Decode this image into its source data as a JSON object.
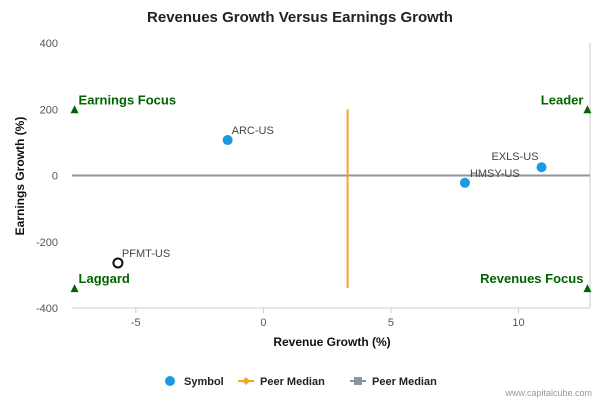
{
  "chart_data": {
    "type": "scatter",
    "title": "Revenues Growth Versus Earnings Growth",
    "xlabel": "Revenue Growth (%)",
    "ylabel": "Earnings Growth (%)",
    "xlim": [
      -7.5,
      12.8
    ],
    "ylim": [
      -400,
      400
    ],
    "xticks": [
      -5,
      0,
      5,
      10
    ],
    "yticks": [
      400,
      200,
      0,
      -200,
      -400
    ],
    "points": [
      {
        "label": "ARC-US",
        "x": -1.4,
        "y": 107,
        "style": "filled"
      },
      {
        "label": "EXLS-US",
        "x": 10.9,
        "y": 25,
        "style": "filled"
      },
      {
        "label": "HMSY-US",
        "x": 7.9,
        "y": -22,
        "style": "filled"
      },
      {
        "label": "PFMT-US",
        "x": -5.7,
        "y": -264,
        "style": "hollow"
      }
    ],
    "peer_median_x": 3.3,
    "peer_median_x_range": [
      -340,
      200
    ],
    "peer_median_y": 0,
    "quadrants": [
      {
        "label": "Earnings Focus",
        "x": -7.4,
        "y": 200,
        "anchor": "start"
      },
      {
        "label": "Leader",
        "x": 12.7,
        "y": 200,
        "anchor": "end"
      },
      {
        "label": "Laggard",
        "x": -7.4,
        "y": -340,
        "anchor": "start"
      },
      {
        "label": "Revenues Focus",
        "x": 12.7,
        "y": -340,
        "anchor": "end"
      }
    ],
    "legend": [
      {
        "label": "Symbol",
        "marker": "circle"
      },
      {
        "label": "Peer Median",
        "marker": "diamond-line"
      },
      {
        "label": "Peer Median",
        "marker": "square-line"
      }
    ],
    "legend_position": "bottom-center"
  },
  "colors": {
    "point": "#1a9be0",
    "hollow": "#111111",
    "peer_vertical": "#f5a623",
    "peer_horizontal": "#8b93a6",
    "quadrant": "#006400",
    "axis": "#cccccc"
  },
  "credit": "www.capitalcube.com"
}
